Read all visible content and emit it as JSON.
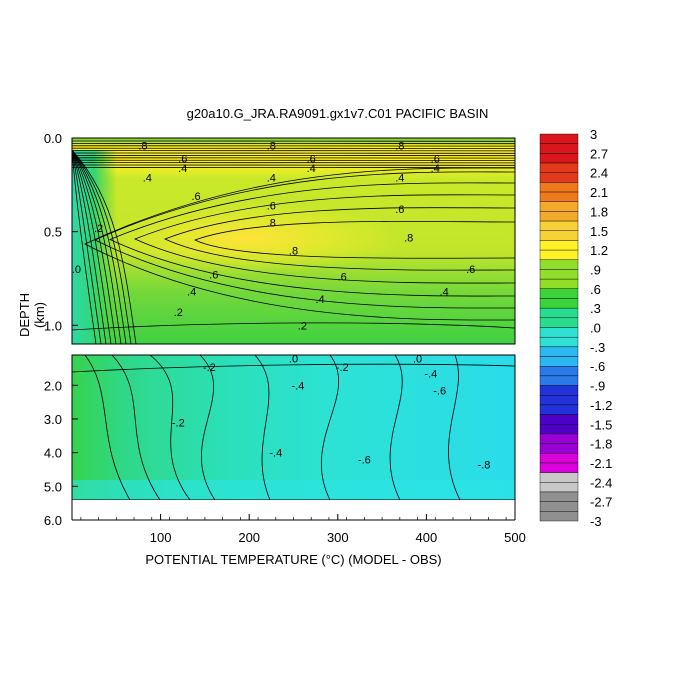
{
  "chart_data": {
    "type": "heatmap",
    "title": "g20a10.G_JRA.RA9091.gx1v7.C01 PACIFIC BASIN",
    "xlabel": "POTENTIAL TEMPERATURE (°C) (MODEL - OBS)",
    "ylabel": "DEPTH (km)",
    "xlim": [
      0,
      500
    ],
    "x_ticks": [
      "100",
      "200",
      "300",
      "400",
      "500"
    ],
    "y_ticks_upper": [
      "0.0",
      "0.5",
      "1.0"
    ],
    "y_ticks_lower": [
      "2.0",
      "3.0",
      "4.0",
      "5.0",
      "6.0"
    ],
    "panels": [
      {
        "name": "upper",
        "ylim": [
          0.0,
          1.1
        ]
      },
      {
        "name": "lower",
        "ylim": [
          1.1,
          6.0
        ]
      }
    ],
    "colorbar": {
      "levels": [
        "3",
        "2.7",
        "2.4",
        "2.1",
        "1.8",
        "1.5",
        "1.2",
        ".9",
        ".6",
        ".3",
        ".0",
        "-.3",
        "-.6",
        "-.9",
        "-1.2",
        "-1.5",
        "-1.8",
        "-2.1",
        "-2.4",
        "-2.7",
        "-3"
      ],
      "colors": [
        "#d8161b",
        "#e23a1a",
        "#ee7a1c",
        "#f3a92a",
        "#f6d238",
        "#fff227",
        "#90dd2a",
        "#3cd23a",
        "#28dc8f",
        "#2ee1d3",
        "#2bb7f0",
        "#2a7be8",
        "#2231da",
        "#4e00c6",
        "#9a00d6",
        "#dc00dc",
        "#c8c8c8",
        "#909090"
      ]
    },
    "contour_labels": [
      {
        "value": ".8",
        "x": 80,
        "depth": 0.04
      },
      {
        "value": ".8",
        "x": 225,
        "depth": 0.04
      },
      {
        "value": ".8",
        "x": 370,
        "depth": 0.04
      },
      {
        "value": ".6",
        "x": 125,
        "depth": 0.11
      },
      {
        "value": ".6",
        "x": 270,
        "depth": 0.11
      },
      {
        "value": ".6",
        "x": 410,
        "depth": 0.11
      },
      {
        "value": ".4",
        "x": 125,
        "depth": 0.16
      },
      {
        "value": ".4",
        "x": 270,
        "depth": 0.16
      },
      {
        "value": ".4",
        "x": 410,
        "depth": 0.16
      },
      {
        "value": ".4",
        "x": 85,
        "depth": 0.21
      },
      {
        "value": ".4",
        "x": 225,
        "depth": 0.21
      },
      {
        "value": ".4",
        "x": 370,
        "depth": 0.21
      },
      {
        "value": ".6",
        "x": 140,
        "depth": 0.31
      },
      {
        "value": ".6",
        "x": 225,
        "depth": 0.36
      },
      {
        "value": ".6",
        "x": 370,
        "depth": 0.38
      },
      {
        "value": ".2",
        "x": 30,
        "depth": 0.48
      },
      {
        "value": ".8",
        "x": 225,
        "depth": 0.45
      },
      {
        "value": ".8",
        "x": 250,
        "depth": 0.6
      },
      {
        "value": ".8",
        "x": 380,
        "depth": 0.53
      },
      {
        "value": ".0",
        "x": 5,
        "depth": 0.7
      },
      {
        "value": ".6",
        "x": 160,
        "depth": 0.73
      },
      {
        "value": ".6",
        "x": 305,
        "depth": 0.74
      },
      {
        "value": ".6",
        "x": 450,
        "depth": 0.7
      },
      {
        "value": ".4",
        "x": 135,
        "depth": 0.82
      },
      {
        "value": ".4",
        "x": 280,
        "depth": 0.86
      },
      {
        "value": ".4",
        "x": 420,
        "depth": 0.82
      },
      {
        "value": ".2",
        "x": 120,
        "depth": 0.93
      },
      {
        "value": ".2",
        "x": 260,
        "depth": 1.0
      },
      {
        "value": "-.2",
        "x": 155,
        "depth": 1.45
      },
      {
        "value": ".0",
        "x": 250,
        "depth": 1.2
      },
      {
        "value": "-.2",
        "x": 305,
        "depth": 1.45
      },
      {
        "value": ".0",
        "x": 390,
        "depth": 1.2
      },
      {
        "value": "-.4",
        "x": 405,
        "depth": 1.65
      },
      {
        "value": "-.4",
        "x": 255,
        "depth": 2.0
      },
      {
        "value": "-.6",
        "x": 415,
        "depth": 2.15
      },
      {
        "value": "-.2",
        "x": 120,
        "depth": 3.1
      },
      {
        "value": "-.4",
        "x": 230,
        "depth": 4.0
      },
      {
        "value": "-.6",
        "x": 330,
        "depth": 4.2
      },
      {
        "value": "-.8",
        "x": 465,
        "depth": 4.35
      }
    ]
  }
}
